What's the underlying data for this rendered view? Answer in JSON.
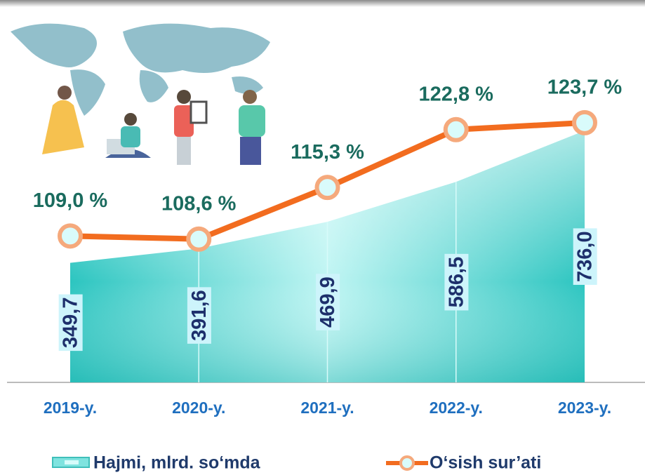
{
  "chart_data": {
    "type": "area-line",
    "categories": [
      "2019-y.",
      "2020-y.",
      "2021-y.",
      "2022-y.",
      "2023-y."
    ],
    "series": [
      {
        "name": "Hajmi, mlrd. so‘mda",
        "color": "#3fd0cc",
        "values": [
          349.7,
          391.6,
          469.9,
          586.5,
          736.0
        ],
        "value_labels": [
          "349,7",
          "391,6",
          "469,9",
          "586,5",
          "736,0"
        ]
      },
      {
        "name": "O‘sish sur’ati",
        "color": "#f26c1f",
        "axis": "y2",
        "values": [
          109.0,
          108.6,
          115.3,
          122.8,
          123.7
        ],
        "value_labels": [
          "109,0 %",
          "108,6 %",
          "115,3 %",
          "122,8 %",
          "123,7 %"
        ]
      }
    ],
    "ylim": [
      0,
      780
    ],
    "y2lim": [
      90,
      124.6
    ],
    "legend": "bottom"
  }
}
